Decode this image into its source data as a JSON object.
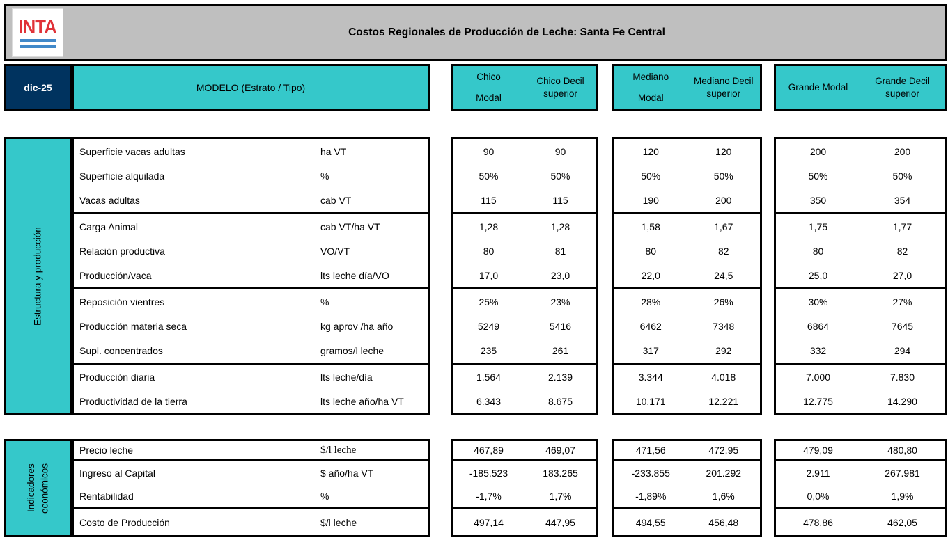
{
  "header": {
    "logo_text": "INTA",
    "title": "Costos Regionales de Producción de Leche: Santa Fe Central",
    "period": "dic-25",
    "model_label": "MODELO (Estrato / Tipo)"
  },
  "colors": {
    "teal": "#35c8ca",
    "navy": "#00335f",
    "header_gray": "#bfbfbf",
    "logo_red": "#e03238",
    "logo_blue": "#4189c9"
  },
  "columns": [
    {
      "id": "chico-modal",
      "label": "Chico\nModal"
    },
    {
      "id": "chico-decil-superior",
      "label": "Chico Decil\nsuperior"
    },
    {
      "id": "mediano-modal",
      "label": "Mediano\nModal"
    },
    {
      "id": "mediano-decil-superior",
      "label": "Mediano Decil\nsuperior"
    },
    {
      "id": "grande-modal",
      "label": "Grande Modal"
    },
    {
      "id": "grande-decil-superior",
      "label": "Grande Decil\nsuperior"
    }
  ],
  "sections": [
    {
      "name": "Estructura y producción",
      "blocks": [
        {
          "rows": [
            {
              "label": "Superficie vacas adultas",
              "unit": "ha VT",
              "values": [
                "90",
                "90",
                "120",
                "120",
                "200",
                "200"
              ]
            },
            {
              "label": "Superficie alquilada",
              "unit": "%",
              "values": [
                "50%",
                "50%",
                "50%",
                "50%",
                "50%",
                "50%"
              ]
            },
            {
              "label": "Vacas adultas",
              "unit": "cab VT",
              "values": [
                "115",
                "115",
                "190",
                "200",
                "350",
                "354"
              ]
            }
          ]
        },
        {
          "rows": [
            {
              "label": "Carga Animal",
              "unit": "cab VT/ha VT",
              "values": [
                "1,28",
                "1,28",
                "1,58",
                "1,67",
                "1,75",
                "1,77"
              ]
            },
            {
              "label": "Relación productiva",
              "unit": "VO/VT",
              "values": [
                "80",
                "81",
                "80",
                "82",
                "80",
                "82"
              ]
            },
            {
              "label": "Producción/vaca",
              "unit": "lts leche día/VO",
              "values": [
                "17,0",
                "23,0",
                "22,0",
                "24,5",
                "25,0",
                "27,0"
              ]
            }
          ]
        },
        {
          "rows": [
            {
              "label": "Reposición vientres",
              "unit": "%",
              "values": [
                "25%",
                "23%",
                "28%",
                "26%",
                "30%",
                "27%"
              ]
            },
            {
              "label": "Producción materia seca",
              "unit": "kg aprov /ha año",
              "values": [
                "5249",
                "5416",
                "6462",
                "7348",
                "6864",
                "7645"
              ]
            },
            {
              "label": "Supl. concentrados",
              "unit": "gramos/l leche",
              "values": [
                "235",
                "261",
                "317",
                "292",
                "332",
                "294"
              ]
            }
          ]
        },
        {
          "rows": [
            {
              "label": "Producción diaria",
              "unit": "lts leche/día",
              "values": [
                "1.564",
                "2.139",
                "3.344",
                "4.018",
                "7.000",
                "7.830"
              ]
            },
            {
              "label": "Productividad de la tierra",
              "unit": "lts leche año/ha VT",
              "values": [
                "6.343",
                "8.675",
                "10.171",
                "12.221",
                "12.775",
                "14.290"
              ]
            }
          ]
        }
      ]
    },
    {
      "name": "Indicadores\neconómicos",
      "blocks": [
        {
          "rows": [
            {
              "label": "Precio leche",
              "unit": "$/l leche",
              "values": [
                "467,89",
                "469,07",
                "471,56",
                "472,95",
                "479,09",
                "480,80"
              ]
            }
          ]
        },
        {
          "rows": [
            {
              "label": "Ingreso al Capital",
              "unit": "$ año/ha VT",
              "values": [
                "-185.523",
                "183.265",
                "-233.855",
                "201.292",
                "2.911",
                "267.981"
              ]
            },
            {
              "label": "Rentabilidad",
              "unit": "%",
              "values": [
                "-1,7%",
                "1,7%",
                "-1,89%",
                "1,6%",
                "0,0%",
                "1,9%"
              ]
            }
          ]
        },
        {
          "rows": [
            {
              "label": "Costo de Producción",
              "unit": "$/l leche",
              "values": [
                "497,14",
                "447,95",
                "494,55",
                "456,48",
                "478,86",
                "462,05"
              ]
            }
          ]
        }
      ]
    }
  ]
}
